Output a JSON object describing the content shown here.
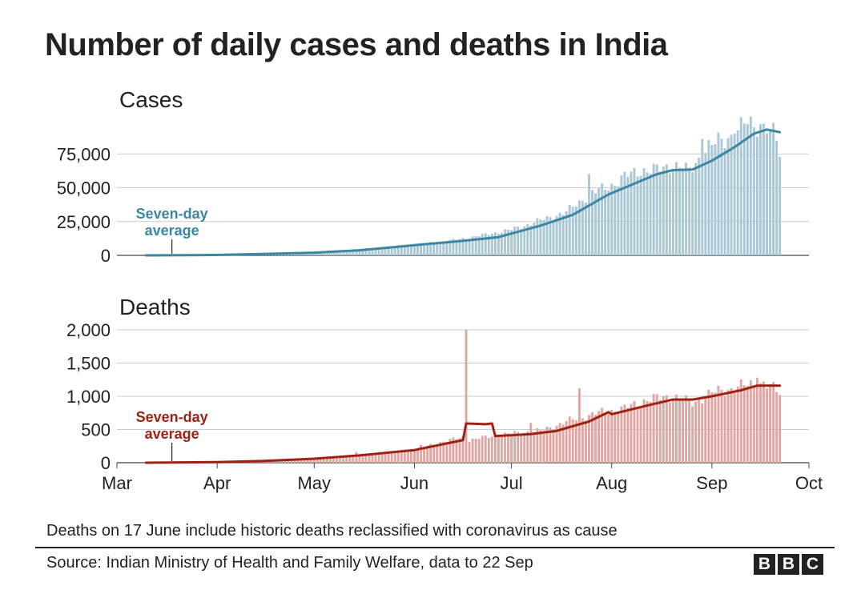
{
  "title": "Number of daily cases and deaths in India",
  "footnote": "Deaths on 17 June include historic deaths reclassified with coronavirus as cause",
  "source": "Source: Indian Ministry of Health and Family Welfare, data to 22 Sep",
  "logo": [
    "B",
    "B",
    "C"
  ],
  "colors": {
    "cases_bar": "#aac7d6",
    "cases_line": "#3d86a3",
    "deaths_bar": "#dfa7a1",
    "deaths_line": "#9e2116",
    "grid": "#cccccc",
    "axis": "#444444"
  },
  "chart_data": [
    {
      "type": "bar",
      "title": "Cases",
      "x_axis": {
        "type": "date",
        "range": [
          "2020-03-01",
          "2020-10-01"
        ],
        "ticks": [
          {
            "date": "2020-03-01",
            "label": "Mar"
          },
          {
            "date": "2020-04-01",
            "label": "Apr"
          },
          {
            "date": "2020-05-01",
            "label": "May"
          },
          {
            "date": "2020-06-01",
            "label": "Jun"
          },
          {
            "date": "2020-07-01",
            "label": "Jul"
          },
          {
            "date": "2020-08-01",
            "label": "Aug"
          },
          {
            "date": "2020-09-01",
            "label": "Sep"
          },
          {
            "date": "2020-10-01",
            "label": "Oct"
          }
        ]
      },
      "ylim": [
        0,
        100000
      ],
      "yticks": [
        0,
        25000,
        50000,
        75000
      ],
      "ytick_labels": [
        "0",
        "25,000",
        "50,000",
        "75,000"
      ],
      "grid": true,
      "annotation": {
        "lines": [
          "Seven-day",
          "average"
        ],
        "date": "2020-03-18"
      },
      "series": [
        {
          "kind": "daily_bars",
          "points": [
            [
              "2020-04-01",
              400
            ],
            [
              "2020-04-15",
              1000
            ],
            [
              "2020-05-01",
              2200
            ],
            [
              "2020-05-10",
              3500
            ],
            [
              "2020-05-20",
              5500
            ],
            [
              "2020-06-01",
              8000
            ],
            [
              "2020-06-10",
              10000
            ],
            [
              "2020-06-20",
              14000
            ],
            [
              "2020-07-01",
              19000
            ],
            [
              "2020-07-10",
              26000
            ],
            [
              "2020-07-18",
              32000
            ],
            [
              "2020-07-25",
              45000
            ],
            [
              "2020-07-28",
              48000
            ],
            [
              "2020-08-01",
              52000
            ],
            [
              "2020-08-05",
              58000
            ],
            [
              "2020-08-10",
              63000
            ],
            [
              "2020-08-15",
              63000
            ],
            [
              "2020-08-20",
              67000
            ],
            [
              "2020-08-25",
              62000
            ],
            [
              "2020-08-30",
              78000
            ],
            [
              "2020-09-03",
              84000
            ],
            [
              "2020-09-08",
              90000
            ],
            [
              "2020-09-12",
              97000
            ],
            [
              "2020-09-16",
              97000
            ],
            [
              "2020-09-19",
              93000
            ],
            [
              "2020-09-21",
              86000
            ],
            [
              "2020-09-22",
              75000
            ]
          ],
          "spikes": [
            [
              "2020-07-25",
              60000
            ],
            [
              "2020-08-29",
              86000
            ],
            [
              "2020-09-11",
              97500
            ],
            [
              "2020-09-16",
              98500
            ]
          ]
        },
        {
          "kind": "seven_day_average",
          "points": [
            [
              "2020-03-10",
              0
            ],
            [
              "2020-03-31",
              300
            ],
            [
              "2020-04-15",
              1000
            ],
            [
              "2020-05-01",
              2000
            ],
            [
              "2020-05-15",
              3800
            ],
            [
              "2020-06-01",
              7500
            ],
            [
              "2020-06-15",
              10500
            ],
            [
              "2020-06-27",
              13500
            ],
            [
              "2020-07-10",
              22000
            ],
            [
              "2020-07-20",
              30000
            ],
            [
              "2020-07-31",
              45000
            ],
            [
              "2020-08-08",
              53000
            ],
            [
              "2020-08-15",
              60000
            ],
            [
              "2020-08-20",
              63000
            ],
            [
              "2020-08-26",
              63500
            ],
            [
              "2020-09-01",
              70000
            ],
            [
              "2020-09-08",
              80000
            ],
            [
              "2020-09-14",
              90000
            ],
            [
              "2020-09-18",
              93000
            ],
            [
              "2020-09-22",
              91000
            ]
          ]
        }
      ]
    },
    {
      "type": "bar",
      "title": "Deaths",
      "ylim": [
        0,
        2000
      ],
      "yticks": [
        0,
        500,
        1000,
        1500,
        2000
      ],
      "ytick_labels": [
        "0",
        "500",
        "1,000",
        "1,500",
        "2,000"
      ],
      "grid": true,
      "annotation": {
        "lines": [
          "Seven-day",
          "average"
        ],
        "date": "2020-03-18"
      },
      "series": [
        {
          "kind": "daily_bars",
          "points": [
            [
              "2020-04-01",
              10
            ],
            [
              "2020-04-15",
              25
            ],
            [
              "2020-05-01",
              70
            ],
            [
              "2020-05-10",
              100
            ],
            [
              "2020-05-20",
              130
            ],
            [
              "2020-06-01",
              200
            ],
            [
              "2020-06-10",
              320
            ],
            [
              "2020-06-16",
              380
            ],
            [
              "2020-06-17",
              2000
            ],
            [
              "2020-06-18",
              340
            ],
            [
              "2020-06-25",
              400
            ],
            [
              "2020-07-01",
              440
            ],
            [
              "2020-07-10",
              480
            ],
            [
              "2020-07-20",
              650
            ],
            [
              "2020-07-28",
              750
            ],
            [
              "2020-08-05",
              820
            ],
            [
              "2020-08-12",
              950
            ],
            [
              "2020-08-20",
              1000
            ],
            [
              "2020-08-26",
              900
            ],
            [
              "2020-09-01",
              1050
            ],
            [
              "2020-09-10",
              1150
            ],
            [
              "2020-09-17",
              1200
            ],
            [
              "2020-09-22",
              1050
            ]
          ],
          "spikes": [
            [
              "2020-05-14",
              160
            ],
            [
              "2020-06-03",
              270
            ],
            [
              "2020-07-07",
              600
            ],
            [
              "2020-07-22",
              1120
            ],
            [
              "2020-09-15",
              1280
            ]
          ]
        },
        {
          "kind": "seven_day_average",
          "points": [
            [
              "2020-03-10",
              0
            ],
            [
              "2020-04-01",
              8
            ],
            [
              "2020-04-15",
              25
            ],
            [
              "2020-05-01",
              60
            ],
            [
              "2020-05-15",
              110
            ],
            [
              "2020-06-01",
              190
            ],
            [
              "2020-06-15",
              330
            ],
            [
              "2020-06-16",
              340
            ],
            [
              "2020-06-17",
              590
            ],
            [
              "2020-06-23",
              580
            ],
            [
              "2020-06-25",
              590
            ],
            [
              "2020-06-26",
              400
            ],
            [
              "2020-07-07",
              430
            ],
            [
              "2020-07-15",
              480
            ],
            [
              "2020-07-25",
              620
            ],
            [
              "2020-07-31",
              760
            ],
            [
              "2020-08-01",
              730
            ],
            [
              "2020-08-12",
              860
            ],
            [
              "2020-08-20",
              950
            ],
            [
              "2020-08-26",
              950
            ],
            [
              "2020-09-01",
              1000
            ],
            [
              "2020-09-10",
              1090
            ],
            [
              "2020-09-15",
              1160
            ],
            [
              "2020-09-22",
              1160
            ]
          ]
        }
      ]
    }
  ]
}
